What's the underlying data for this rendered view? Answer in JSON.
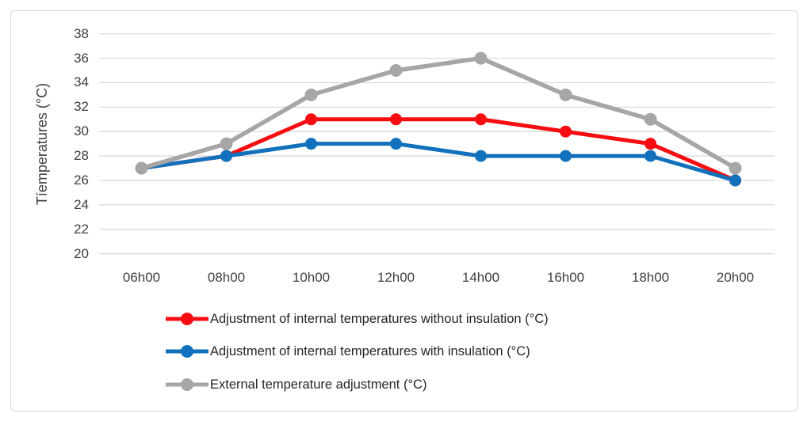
{
  "chart_data": {
    "type": "line",
    "title": "",
    "xlabel": "",
    "ylabel": "Tíemperatures (°C)",
    "categories": [
      "06h00",
      "08h00",
      "10h00",
      "12h00",
      "14h00",
      "16h00",
      "18h00",
      "20h00"
    ],
    "series": [
      {
        "name": "Adjustment of internal temperatures without insulation (°C)",
        "color": "#f60d12",
        "values": [
          27,
          28,
          31,
          31,
          31,
          30,
          29,
          26
        ]
      },
      {
        "name": "Adjustment of internal temperatures with insulation (°C)",
        "color": "#1271bc",
        "values": [
          27,
          28,
          29,
          29,
          28,
          28,
          28,
          26
        ]
      },
      {
        "name": "External temperature adjustment (°C)",
        "color": "#a6a6a6",
        "values": [
          27,
          29,
          33,
          35,
          36,
          33,
          31,
          27
        ]
      }
    ],
    "y_axis": {
      "min": 20,
      "max": 38,
      "step": 2,
      "ticks": [
        38,
        36,
        34,
        32,
        30,
        28,
        26,
        24,
        22,
        20
      ]
    },
    "ylim": [
      20,
      38
    ],
    "grid": "horizontal",
    "legend_position": "bottom-left",
    "colors": {
      "gridline": "#d9d9d9",
      "axis_text": "#404040",
      "legend_text": "#262626",
      "frame_border": "#d7d7d7",
      "background": "#ffffff"
    }
  }
}
